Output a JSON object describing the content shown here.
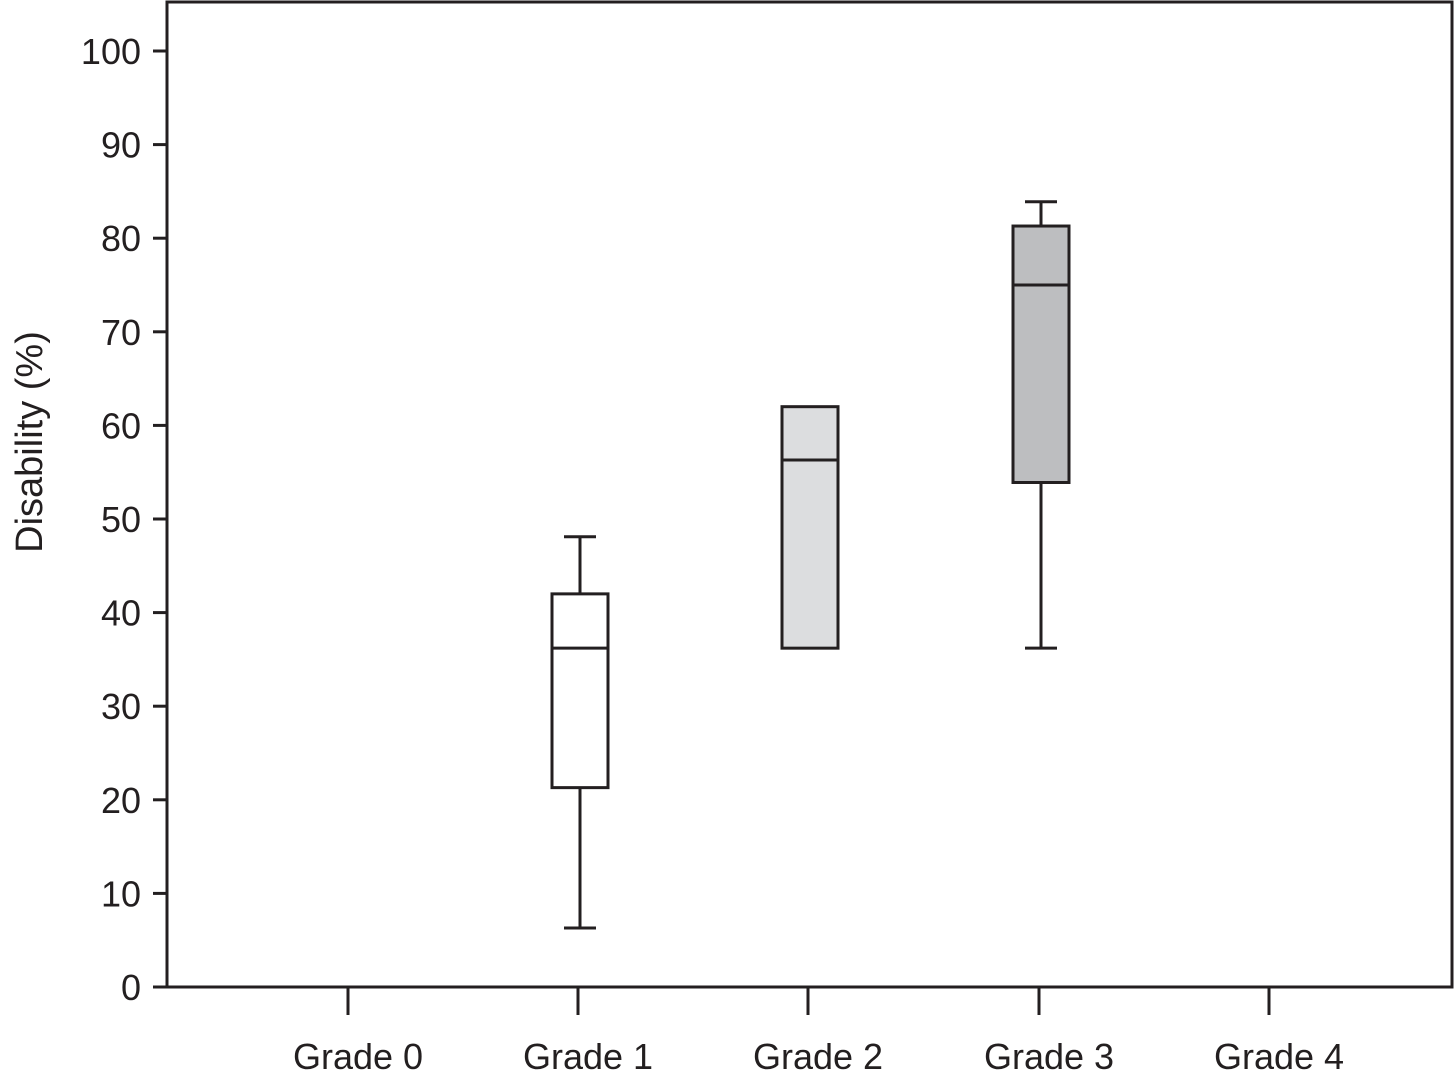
{
  "chart_data": {
    "type": "box",
    "title": "",
    "xlabel": "",
    "ylabel": "Disability (%)",
    "ylim": [
      0,
      105
    ],
    "yticks": [
      0,
      10,
      20,
      30,
      40,
      50,
      60,
      70,
      80,
      90,
      100
    ],
    "ytick_labels": [
      "0",
      "10",
      "20",
      "30",
      "40",
      "50",
      "60",
      "70",
      "80",
      "90",
      "100"
    ],
    "categories": [
      "Grade 0",
      "Grade 1",
      "Grade 2",
      "Grade 3",
      "Grade 4"
    ],
    "grid": false,
    "legend": "none",
    "boxes": [
      null,
      {
        "whisker_low": 6.3,
        "q1": 21.3,
        "median": 36.2,
        "q3": 42.0,
        "whisker_high": 48.1,
        "fill": "#ffffff"
      },
      {
        "whisker_low": 36.2,
        "q1": 36.2,
        "median": 56.3,
        "q3": 62.0,
        "whisker_high": 62.0,
        "fill": "#dcdddf"
      },
      {
        "whisker_low": 36.2,
        "q1": 53.9,
        "median": 75.0,
        "q3": 81.3,
        "whisker_high": 83.9,
        "fill": "#bdbec0"
      },
      null
    ],
    "colors": {
      "line": "#231f20",
      "text": "#231f20"
    }
  }
}
